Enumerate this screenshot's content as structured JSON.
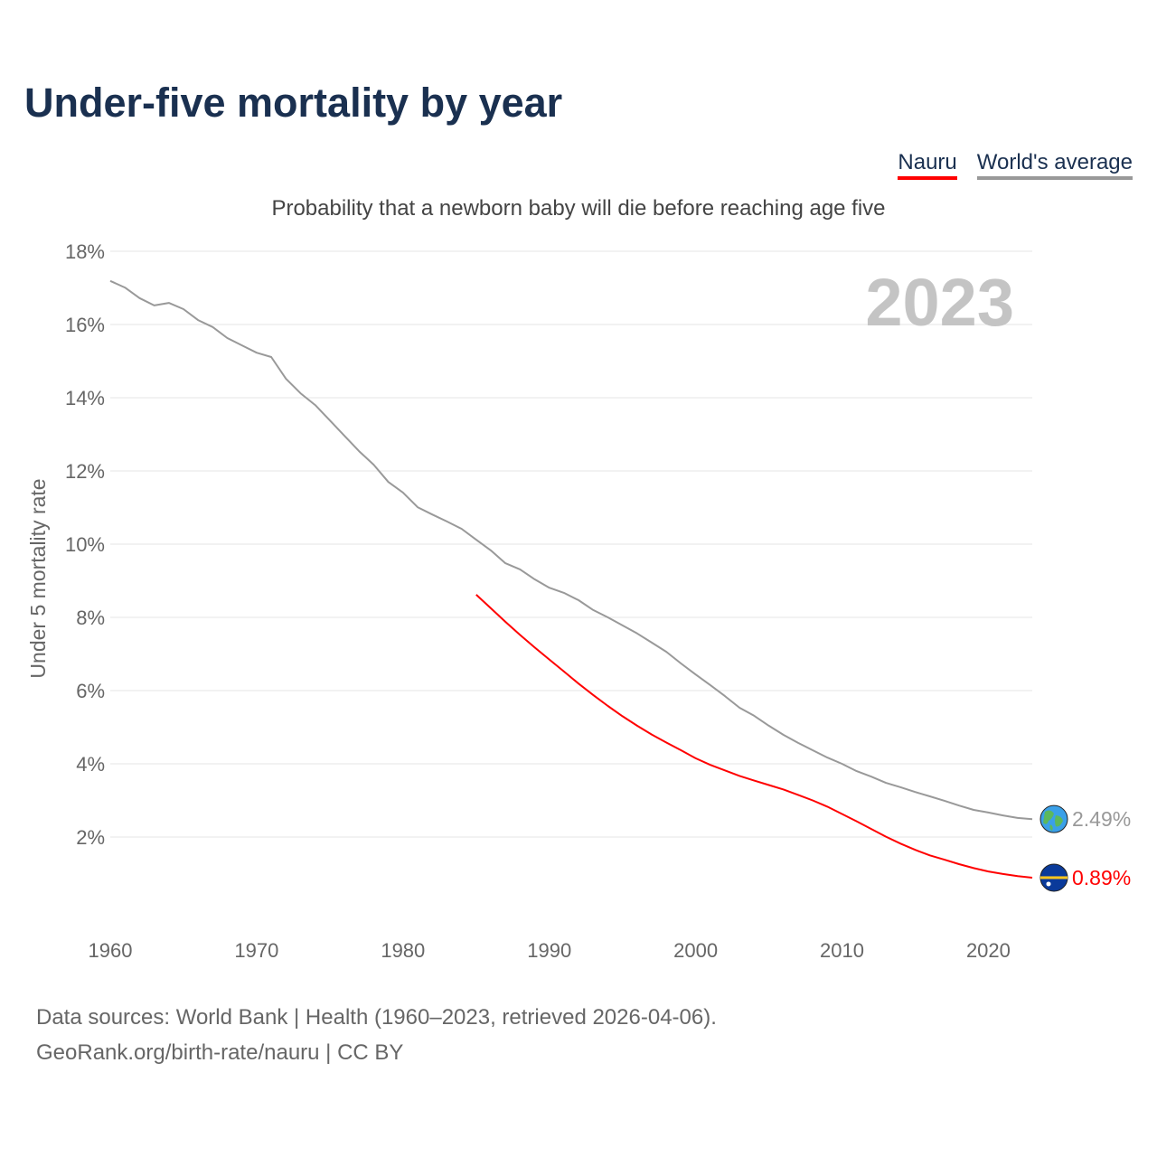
{
  "title": "Under-five mortality by year",
  "legend": {
    "nauru": "Nauru",
    "world": "World's average"
  },
  "footer": {
    "line1": "Data sources: World Bank | Health (1960–2023, retrieved 2026-04-06).",
    "line2": "GeoRank.org/birth-rate/nauru | CC BY"
  },
  "colors": {
    "nauru": "#ff0000",
    "world": "#999999",
    "title": "#1a3050"
  },
  "chart_data": {
    "type": "line",
    "title": "Under-five mortality by year",
    "subtitle": "Probability that a newborn baby will die before reaching age five",
    "ylabel": "Under 5 mortality rate",
    "xlabel": "",
    "year_label": "2023",
    "xlim": [
      1960,
      2023
    ],
    "ylim": [
      0,
      18
    ],
    "x_ticks": [
      1960,
      1970,
      1980,
      1990,
      2000,
      2010,
      2020
    ],
    "x_tick_labels": [
      "1960",
      "1970",
      "1980",
      "1990",
      "2000",
      "2010",
      "2020"
    ],
    "y_ticks": [
      2,
      4,
      6,
      8,
      10,
      12,
      14,
      16,
      18
    ],
    "y_tick_labels": [
      "2%",
      "4%",
      "6%",
      "8%",
      "10%",
      "12%",
      "14%",
      "16%",
      "18%"
    ],
    "grid": true,
    "legend_position": "top-right",
    "series": [
      {
        "name": "World's average",
        "end_label": "2.49%",
        "start_year": 1960,
        "values": [
          17.19,
          17.01,
          16.72,
          16.52,
          16.59,
          16.42,
          16.12,
          15.93,
          15.63,
          15.43,
          15.23,
          15.11,
          14.52,
          14.12,
          13.8,
          13.38,
          12.96,
          12.54,
          12.17,
          11.7,
          11.41,
          11.01,
          10.81,
          10.62,
          10.42,
          10.12,
          9.83,
          9.48,
          9.31,
          9.04,
          8.81,
          8.67,
          8.47,
          8.2,
          8.0,
          7.78,
          7.56,
          7.31,
          7.06,
          6.74,
          6.44,
          6.15,
          5.85,
          5.53,
          5.31,
          5.04,
          4.79,
          4.57,
          4.37,
          4.17,
          4.0,
          3.8,
          3.65,
          3.48,
          3.36,
          3.23,
          3.11,
          2.99,
          2.86,
          2.74,
          2.67,
          2.59,
          2.52,
          2.49
        ]
      },
      {
        "name": "Nauru",
        "end_label": "0.89%",
        "start_year": 1985,
        "values": [
          8.62,
          8.25,
          7.88,
          7.52,
          7.18,
          6.85,
          6.52,
          6.19,
          5.88,
          5.58,
          5.3,
          5.04,
          4.8,
          4.58,
          4.37,
          4.15,
          3.97,
          3.82,
          3.67,
          3.54,
          3.42,
          3.3,
          3.15,
          3.0,
          2.83,
          2.63,
          2.43,
          2.22,
          2.01,
          1.82,
          1.65,
          1.5,
          1.38,
          1.26,
          1.15,
          1.06,
          0.99,
          0.93,
          0.89
        ]
      }
    ]
  }
}
